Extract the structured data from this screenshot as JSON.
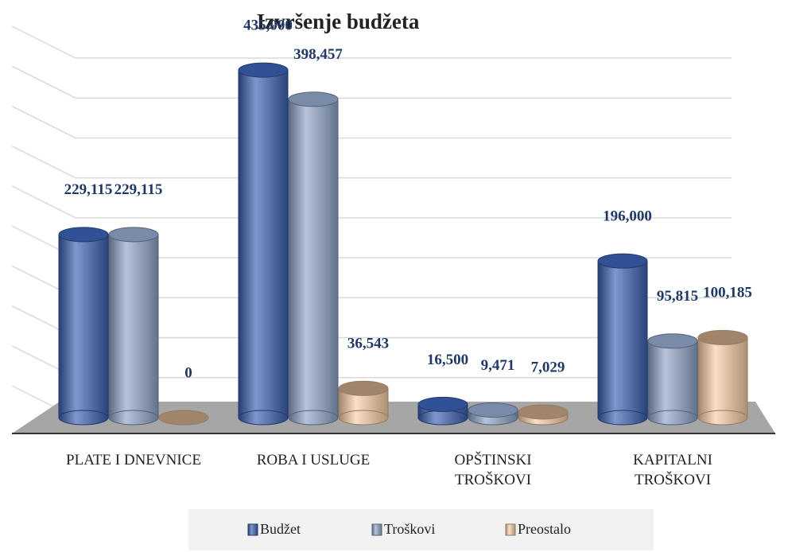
{
  "chart_data": {
    "type": "bar3d",
    "title": "Izvršenje budžeta",
    "categories": [
      "PLATE I DNEVNICE",
      "ROBA I USLUGE",
      "OPŠTINSKI\nTROŠKOVI",
      "KAPITALNI\nTROŠKOVI"
    ],
    "series": [
      {
        "name": "Budžet",
        "color": "#3a5fb0",
        "values": [
          229115,
          435000,
          16500,
          196000
        ],
        "value_labels": [
          "229,115",
          "435,000",
          "16,500",
          "196,000"
        ]
      },
      {
        "name": "Troškovi",
        "color": "#8ea3c6",
        "values": [
          229115,
          398457,
          9471,
          95815
        ],
        "value_labels": [
          "229,115",
          "398,457",
          "9,471",
          "95,815"
        ]
      },
      {
        "name": "Preostalo",
        "color": "#f7cda5",
        "values": [
          0,
          36543,
          7029,
          100185
        ],
        "value_labels": [
          "0",
          "36,543",
          "7,029",
          "100,185"
        ]
      }
    ],
    "ylim": [
      0,
      450000
    ],
    "yticks": [
      0,
      50000,
      100000,
      150000,
      200000,
      250000,
      300000,
      350000,
      400000,
      450000
    ],
    "grid": true
  }
}
